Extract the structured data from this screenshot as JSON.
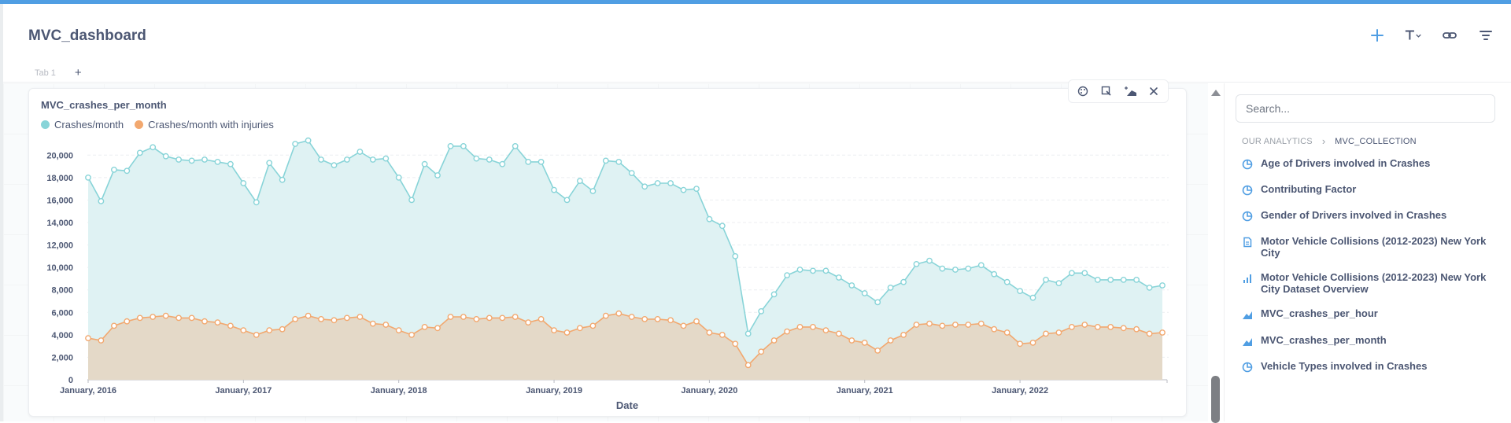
{
  "dashboard": {
    "title": "MVC_dashboard"
  },
  "tabs": [
    {
      "label": "Tab 1"
    }
  ],
  "header_icons": [
    "plus-icon",
    "text-icon",
    "link-icon",
    "filter-icon"
  ],
  "card": {
    "title": "MVC_crashes_per_month",
    "actions": [
      "palette-icon",
      "replace-icon",
      "visualization-icon",
      "close-icon"
    ]
  },
  "colors": {
    "accent": "#509ee3",
    "series1": "#88d4d8",
    "series2": "#f2a86f",
    "area1": "#dff2f3",
    "area2": "#e4d9c8"
  },
  "chart_data": {
    "type": "area",
    "xlabel": "Date",
    "ylabel": "",
    "ylim": [
      0,
      21000
    ],
    "yticks": [
      "20,000",
      "18,000",
      "16,000",
      "14,000",
      "12,000",
      "10,000",
      "8,000",
      "6,000",
      "4,000",
      "2,000",
      "0"
    ],
    "xticks": [
      "January, 2016",
      "January, 2017",
      "January, 2018",
      "January, 2019",
      "January, 2020",
      "January, 2021",
      "January, 2022"
    ],
    "x_start": "2016-01",
    "grid": true,
    "legend_position": "top-left",
    "series": [
      {
        "name": "Crashes/month",
        "color": "#88d4d8",
        "values": [
          18000,
          15900,
          18700,
          18600,
          20200,
          20700,
          19900,
          19600,
          19500,
          19600,
          19400,
          19200,
          17500,
          15800,
          19300,
          17800,
          21000,
          21300,
          19600,
          19100,
          19600,
          20300,
          19600,
          19700,
          18000,
          16000,
          19200,
          18200,
          20800,
          20800,
          19700,
          19600,
          19200,
          20800,
          19400,
          19400,
          16900,
          16000,
          17700,
          16800,
          19500,
          19400,
          18400,
          17200,
          17500,
          17500,
          16900,
          17000,
          14300,
          13700,
          11000,
          4100,
          6100,
          7600,
          9300,
          9800,
          9700,
          9700,
          9100,
          8400,
          7700,
          6900,
          8200,
          8700,
          10300,
          10600,
          9900,
          9800,
          9900,
          10200,
          9400,
          8700,
          7900,
          7300,
          8900,
          8600,
          9500,
          9500,
          8900,
          8900,
          8900,
          8900,
          8200,
          8400
        ]
      },
      {
        "name": "Crashes/month with injuries",
        "color": "#f2a86f",
        "values": [
          3700,
          3500,
          4800,
          5200,
          5500,
          5600,
          5700,
          5500,
          5500,
          5200,
          5100,
          4800,
          4400,
          4000,
          4400,
          4500,
          5400,
          5700,
          5400,
          5300,
          5500,
          5600,
          5000,
          4900,
          4400,
          4000,
          4700,
          4600,
          5600,
          5600,
          5400,
          5500,
          5500,
          5600,
          5100,
          5400,
          4400,
          4200,
          4600,
          4800,
          5700,
          5900,
          5600,
          5400,
          5400,
          5300,
          4800,
          5200,
          4200,
          4000,
          3200,
          1300,
          2500,
          3500,
          4300,
          4700,
          4700,
          4400,
          4100,
          3500,
          3300,
          2600,
          3500,
          4000,
          4900,
          5000,
          4800,
          4900,
          4900,
          5000,
          4500,
          4200,
          3200,
          3300,
          4100,
          4200,
          4700,
          4900,
          4700,
          4700,
          4600,
          4500,
          4100,
          4200
        ]
      }
    ]
  },
  "sidebar": {
    "search_placeholder": "Search...",
    "breadcrumb": {
      "root": "OUR ANALYTICS",
      "current": "MVC_COLLECTION"
    },
    "items": [
      {
        "label": "Age of Drivers involved in Crashes",
        "icon": "pie-icon"
      },
      {
        "label": "Contributing Factor",
        "icon": "pie-icon"
      },
      {
        "label": "Gender of Drivers involved in Crashes",
        "icon": "pie-icon"
      },
      {
        "label": "Motor Vehicle Collisions (2012-2023) New York City",
        "icon": "document-icon"
      },
      {
        "label": "Motor Vehicle Collisions (2012-2023) New York City Dataset Overview",
        "icon": "bar-icon"
      },
      {
        "label": "MVC_crashes_per_hour",
        "icon": "area-icon"
      },
      {
        "label": "MVC_crashes_per_month",
        "icon": "area-icon"
      },
      {
        "label": "Vehicle Types involved in Crashes",
        "icon": "pie-icon"
      }
    ]
  }
}
